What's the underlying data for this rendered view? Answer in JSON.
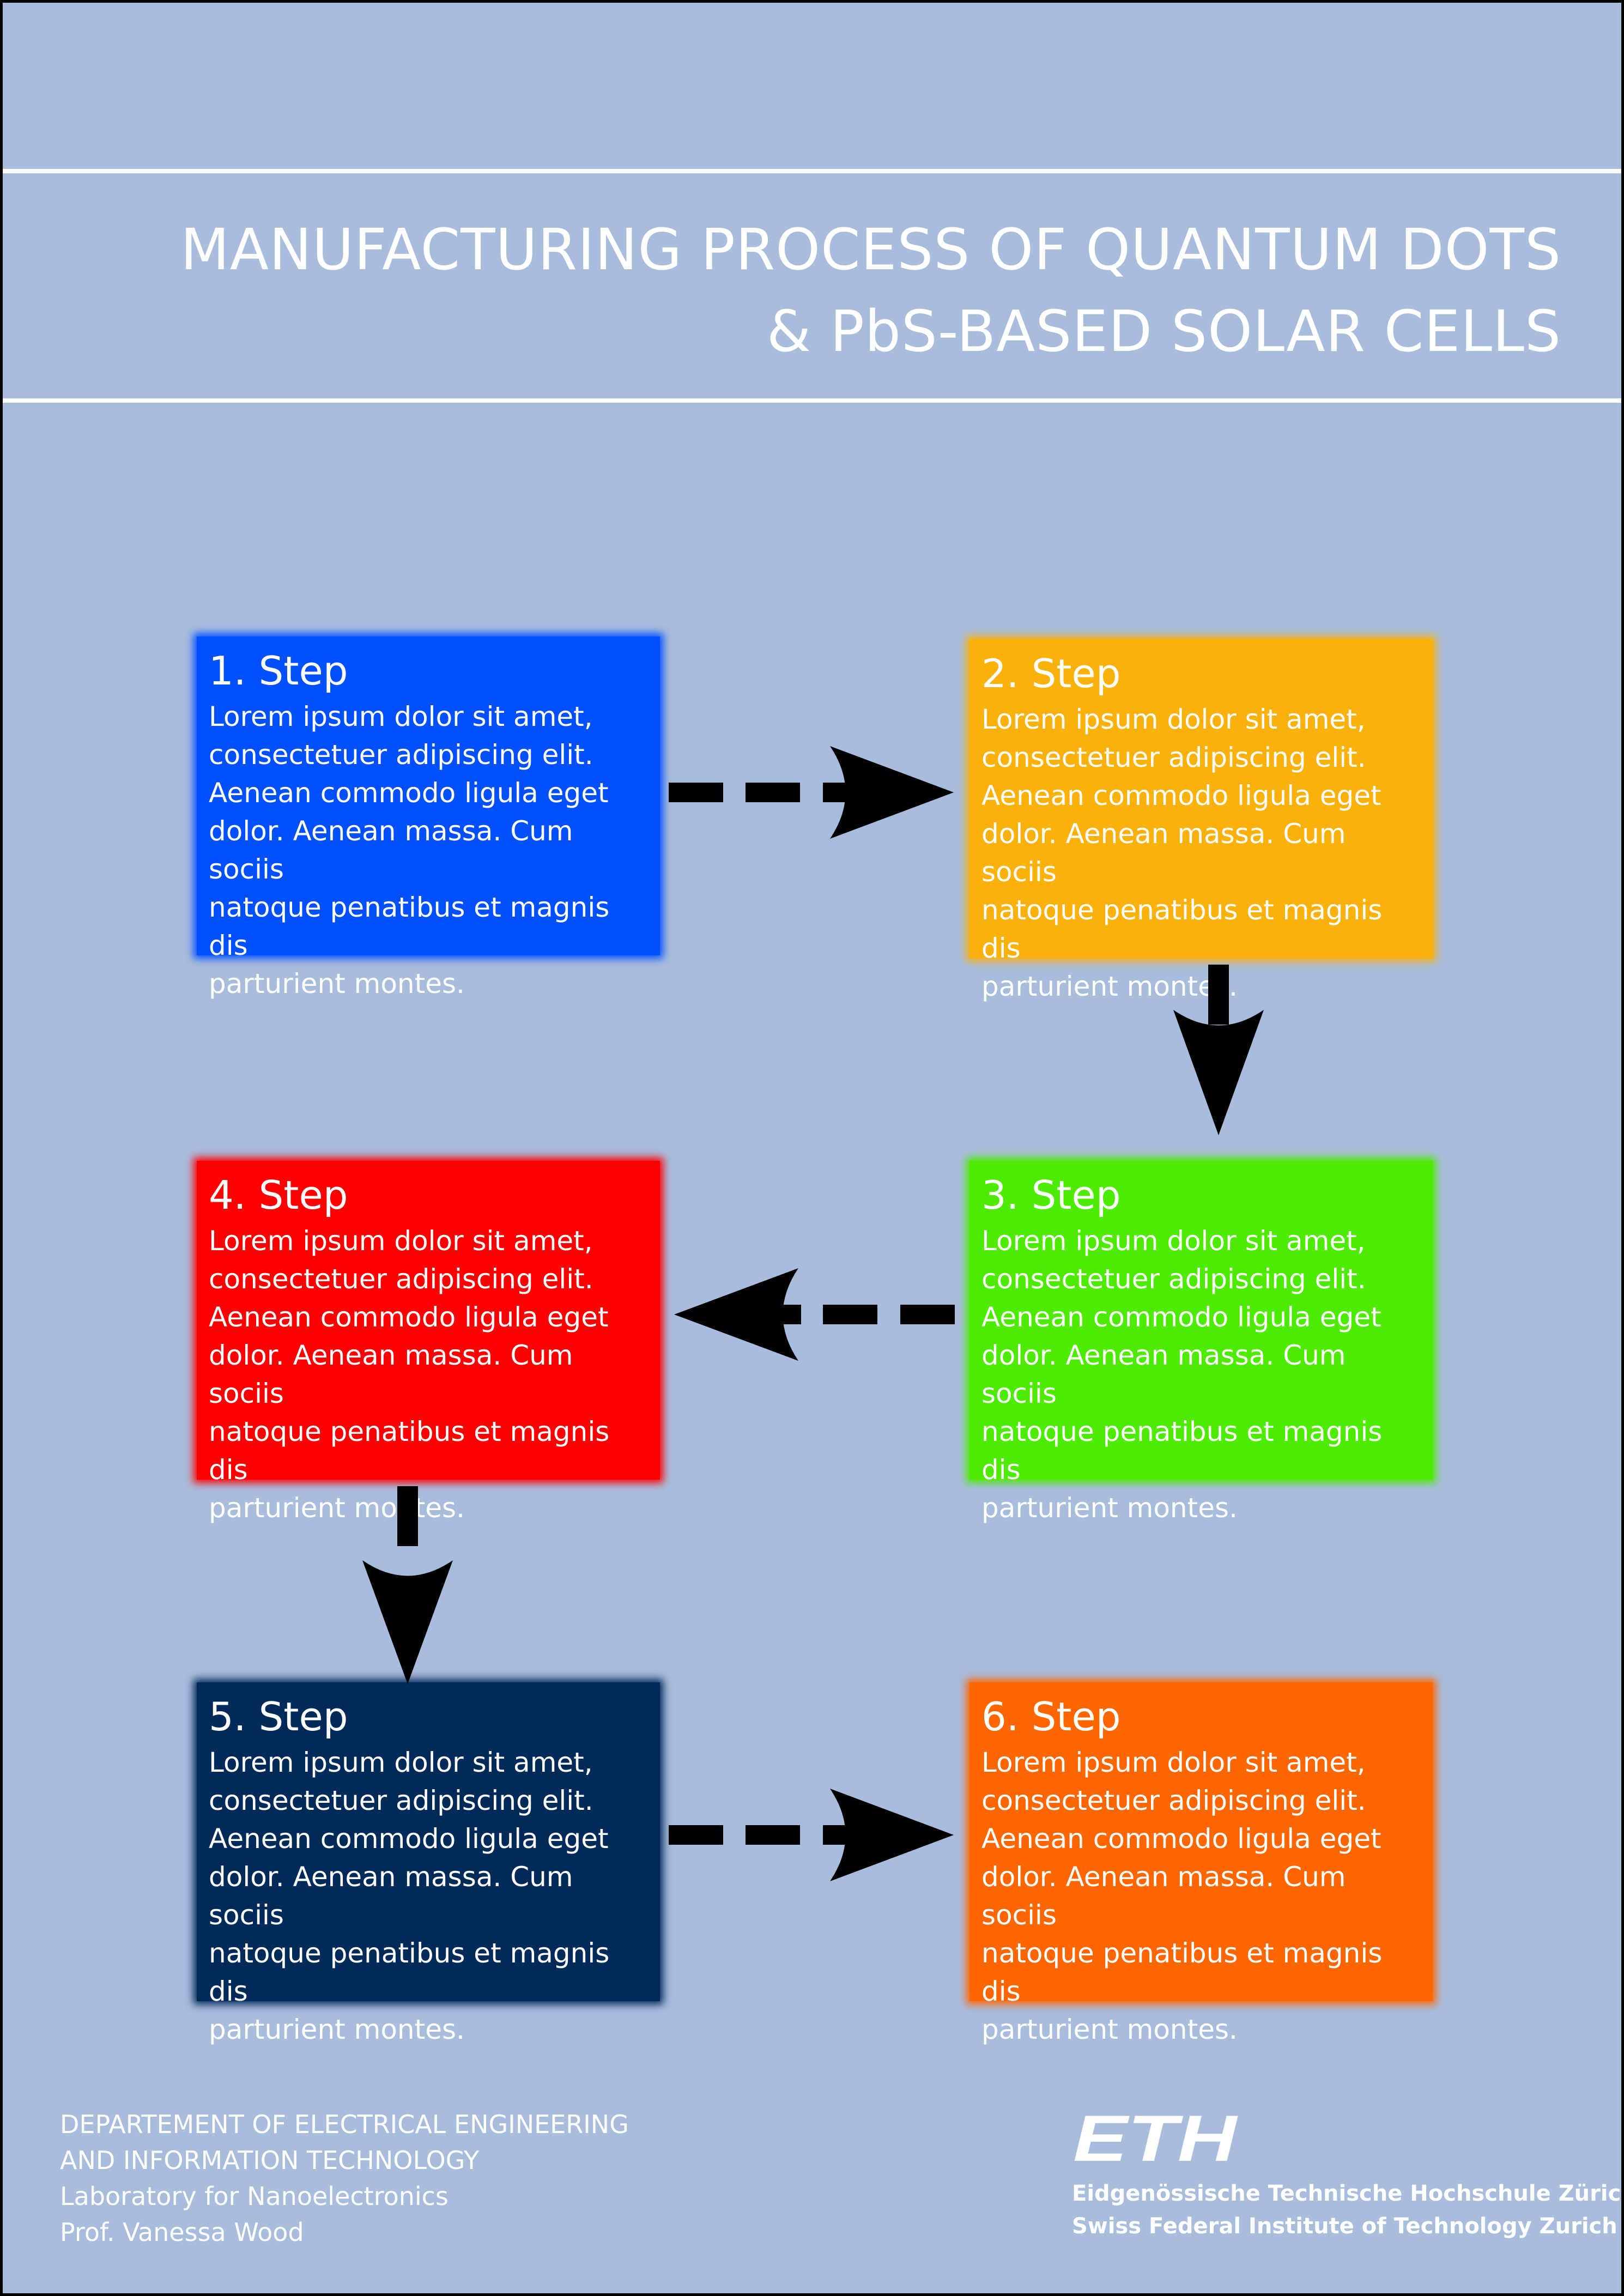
{
  "header": {
    "title_line1": "MANUFACTURING PROCESS OF QUANTUM DOTS",
    "title_line2": "& PbS-BASED SOLAR CELLS"
  },
  "steps": [
    {
      "id": 1,
      "label": "1. Step",
      "color": "#0050ff",
      "text": "Lorem ipsum dolor sit amet,\nconsectetuer adipiscing elit.\nAenean commodo ligula eget\ndolor. Aenean massa. Cum sociis\nnatoque penatibus et magnis dis\nparturient montes."
    },
    {
      "id": 2,
      "label": "2. Step",
      "color": "#fbb10c",
      "text": "Lorem ipsum dolor sit amet,\nconsectetuer adipiscing elit.\nAenean commodo ligula eget\ndolor. Aenean massa. Cum sociis\nnatoque penatibus et magnis dis\nparturient montes."
    },
    {
      "id": 3,
      "label": "3. Step",
      "color": "#4ceb00",
      "text": "Lorem ipsum dolor sit amet,\nconsectetuer adipiscing elit.\nAenean commodo ligula eget\ndolor. Aenean massa. Cum sociis\nnatoque penatibus et magnis dis\nparturient montes."
    },
    {
      "id": 4,
      "label": "4. Step",
      "color": "#ff0000",
      "text": "Lorem ipsum dolor sit amet,\nconsectetuer adipiscing elit.\nAenean commodo ligula eget\ndolor. Aenean massa. Cum sociis\nnatoque penatibus et magnis dis\nparturient montes."
    },
    {
      "id": 5,
      "label": "5. Step",
      "color": "#002a5a",
      "text": "Lorem ipsum dolor sit amet,\nconsectetuer adipiscing elit.\nAenean commodo ligula eget\ndolor. Aenean massa. Cum sociis\nnatoque penatibus et magnis dis\nparturient montes."
    },
    {
      "id": 6,
      "label": "6. Step",
      "color": "#ff6600",
      "text": "Lorem ipsum dolor sit amet,\nconsectetuer adipiscing elit.\nAenean commodo ligula eget\ndolor. Aenean massa. Cum sociis\nnatoque penatibus et magnis dis\nparturient montes."
    }
  ],
  "flow": [
    {
      "from": 1,
      "to": 2,
      "style": "dashed"
    },
    {
      "from": 2,
      "to": 3,
      "style": "solid"
    },
    {
      "from": 3,
      "to": 4,
      "style": "dashed"
    },
    {
      "from": 4,
      "to": 5,
      "style": "solid"
    },
    {
      "from": 5,
      "to": 6,
      "style": "dashed"
    }
  ],
  "footer": {
    "dept_line1": "DEPARTEMENT OF ELECTRICAL ENGINEERING",
    "dept_line2": "AND INFORMATION TECHNOLOGY",
    "lab": "Laboratory for Nanoelectronics",
    "prof": "Prof. Vanessa Wood",
    "logo_text": "ETH",
    "eth_line1": "Eidgenössische Technische Hochschule Zürich",
    "eth_line2": "Swiss Federal Institute of Technology Zurich"
  },
  "colors": {
    "background": "#a8bcdc",
    "text": "#ffffff",
    "arrow": "#000000"
  }
}
